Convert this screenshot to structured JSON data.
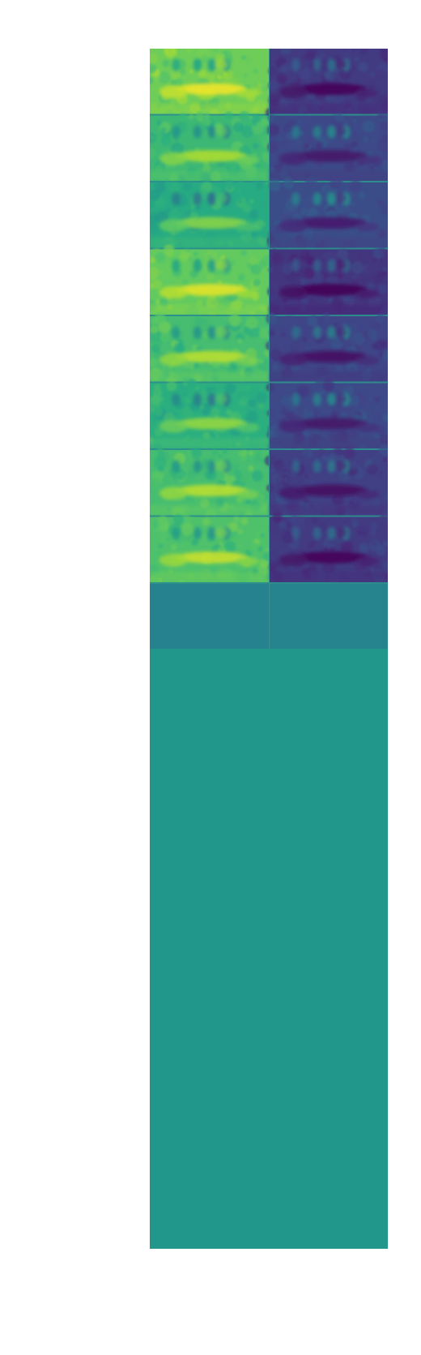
{
  "figure": {
    "grid_rows": 8,
    "grid_cols": 2,
    "background_color": "#21968b",
    "colormap": "viridis",
    "panels": [
      {
        "row": 1,
        "col": 1,
        "mean_level": 0.78
      },
      {
        "row": 1,
        "col": 2,
        "mean_level": 0.22
      },
      {
        "row": 2,
        "col": 1,
        "mean_level": 0.68
      },
      {
        "row": 2,
        "col": 2,
        "mean_level": 0.28
      },
      {
        "row": 3,
        "col": 1,
        "mean_level": 0.62
      },
      {
        "row": 3,
        "col": 2,
        "mean_level": 0.3
      },
      {
        "row": 4,
        "col": 1,
        "mean_level": 0.76
      },
      {
        "row": 4,
        "col": 2,
        "mean_level": 0.2
      },
      {
        "row": 5,
        "col": 1,
        "mean_level": 0.7
      },
      {
        "row": 5,
        "col": 2,
        "mean_level": 0.26
      },
      {
        "row": 6,
        "col": 1,
        "mean_level": 0.64
      },
      {
        "row": 6,
        "col": 2,
        "mean_level": 0.28
      },
      {
        "row": 7,
        "col": 1,
        "mean_level": 0.7
      },
      {
        "row": 7,
        "col": 2,
        "mean_level": 0.24
      },
      {
        "row": 8,
        "col": 1,
        "mean_level": 0.72
      },
      {
        "row": 8,
        "col": 2,
        "mean_level": 0.22
      }
    ],
    "blank_band_colors": [
      "#26828e",
      "#26848e"
    ]
  }
}
